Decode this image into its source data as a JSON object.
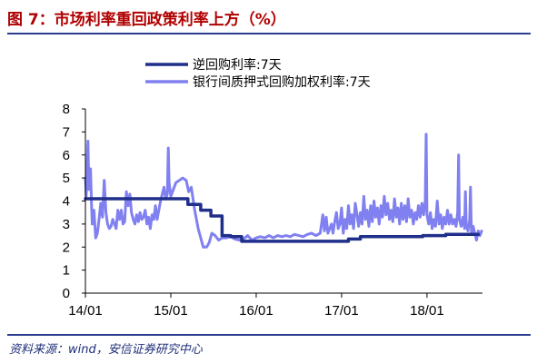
{
  "figure": {
    "title": "图 7：市场利率重回政策利率上方（%）",
    "source": "资料来源：wind，安信证券研究中心"
  },
  "chart_data": {
    "type": "line",
    "title": "",
    "xlabel": "",
    "ylabel": "",
    "x_ticks": [
      "14/01",
      "15/01",
      "16/01",
      "17/01",
      "18/01"
    ],
    "y_ticks": [
      "0",
      "1",
      "2",
      "3",
      "4",
      "5",
      "6",
      "7",
      "8"
    ],
    "ylim": [
      0,
      8
    ],
    "xlim": [
      2014.0,
      2018.65
    ],
    "legend_position": "top",
    "grid": false,
    "series": [
      {
        "name": "逆回购利率:7天",
        "color": "#1f2f8a",
        "step": true,
        "points": [
          [
            2014.0,
            4.1
          ],
          [
            2015.2,
            4.1
          ],
          [
            2015.2,
            3.85
          ],
          [
            2015.35,
            3.85
          ],
          [
            2015.35,
            3.6
          ],
          [
            2015.47,
            3.6
          ],
          [
            2015.47,
            3.35
          ],
          [
            2015.6,
            3.35
          ],
          [
            2015.6,
            2.5
          ],
          [
            2015.7,
            2.5
          ],
          [
            2015.7,
            2.45
          ],
          [
            2015.83,
            2.45
          ],
          [
            2015.83,
            2.25
          ],
          [
            2017.08,
            2.25
          ],
          [
            2017.08,
            2.35
          ],
          [
            2017.22,
            2.35
          ],
          [
            2017.22,
            2.45
          ],
          [
            2017.95,
            2.45
          ],
          [
            2017.95,
            2.5
          ],
          [
            2018.22,
            2.5
          ],
          [
            2018.22,
            2.55
          ],
          [
            2018.6,
            2.55
          ]
        ]
      },
      {
        "name": "银行间质押式回购加权利率:7天",
        "color": "#8080f0",
        "step": false,
        "points": [
          [
            2014.0,
            5.0
          ],
          [
            2014.01,
            4.2
          ],
          [
            2014.02,
            5.5
          ],
          [
            2014.03,
            6.6
          ],
          [
            2014.04,
            4.5
          ],
          [
            2014.05,
            5.0
          ],
          [
            2014.06,
            5.4
          ],
          [
            2014.07,
            4.0
          ],
          [
            2014.08,
            3.0
          ],
          [
            2014.1,
            3.6
          ],
          [
            2014.12,
            2.4
          ],
          [
            2014.14,
            2.6
          ],
          [
            2014.16,
            3.2
          ],
          [
            2014.18,
            3.9
          ],
          [
            2014.2,
            3.3
          ],
          [
            2014.22,
            4.9
          ],
          [
            2014.24,
            3.5
          ],
          [
            2014.26,
            3.0
          ],
          [
            2014.28,
            2.8
          ],
          [
            2014.3,
            2.9
          ],
          [
            2014.32,
            3.2
          ],
          [
            2014.34,
            3.0
          ],
          [
            2014.36,
            2.8
          ],
          [
            2014.38,
            3.6
          ],
          [
            2014.4,
            3.2
          ],
          [
            2014.42,
            3.6
          ],
          [
            2014.44,
            3.0
          ],
          [
            2014.46,
            3.1
          ],
          [
            2014.48,
            4.4
          ],
          [
            2014.5,
            3.8
          ],
          [
            2014.52,
            4.3
          ],
          [
            2014.54,
            3.5
          ],
          [
            2014.56,
            3.2
          ],
          [
            2014.58,
            3.0
          ],
          [
            2014.6,
            3.4
          ],
          [
            2014.62,
            3.1
          ],
          [
            2014.64,
            3.5
          ],
          [
            2014.66,
            3.2
          ],
          [
            2014.68,
            3.3
          ],
          [
            2014.7,
            3.6
          ],
          [
            2014.72,
            3.0
          ],
          [
            2014.74,
            3.3
          ],
          [
            2014.76,
            2.8
          ],
          [
            2014.78,
            3.4
          ],
          [
            2014.8,
            3.2
          ],
          [
            2014.82,
            3.8
          ],
          [
            2014.84,
            3.2
          ],
          [
            2014.86,
            3.6
          ],
          [
            2014.88,
            4.0
          ],
          [
            2014.9,
            4.3
          ],
          [
            2014.92,
            4.6
          ],
          [
            2014.94,
            4.1
          ],
          [
            2014.96,
            4.3
          ],
          [
            2014.97,
            6.3
          ],
          [
            2014.98,
            4.8
          ],
          [
            2015.0,
            4.2
          ],
          [
            2015.03,
            4.5
          ],
          [
            2015.06,
            4.8
          ],
          [
            2015.1,
            4.9
          ],
          [
            2015.14,
            5.0
          ],
          [
            2015.18,
            4.9
          ],
          [
            2015.21,
            4.4
          ],
          [
            2015.24,
            4.6
          ],
          [
            2015.28,
            3.6
          ],
          [
            2015.32,
            2.8
          ],
          [
            2015.35,
            2.4
          ],
          [
            2015.38,
            2.0
          ],
          [
            2015.42,
            2.0
          ],
          [
            2015.45,
            2.2
          ],
          [
            2015.48,
            2.6
          ],
          [
            2015.52,
            2.5
          ],
          [
            2015.56,
            2.3
          ],
          [
            2015.6,
            2.4
          ],
          [
            2015.65,
            2.4
          ],
          [
            2015.7,
            2.45
          ],
          [
            2015.75,
            2.35
          ],
          [
            2015.8,
            2.3
          ],
          [
            2015.85,
            2.35
          ],
          [
            2015.9,
            2.5
          ],
          [
            2015.95,
            2.3
          ],
          [
            2016.0,
            2.4
          ],
          [
            2016.05,
            2.45
          ],
          [
            2016.1,
            2.4
          ],
          [
            2016.15,
            2.5
          ],
          [
            2016.2,
            2.4
          ],
          [
            2016.25,
            2.5
          ],
          [
            2016.3,
            2.45
          ],
          [
            2016.35,
            2.5
          ],
          [
            2016.4,
            2.45
          ],
          [
            2016.45,
            2.55
          ],
          [
            2016.5,
            2.5
          ],
          [
            2016.55,
            2.45
          ],
          [
            2016.6,
            2.55
          ],
          [
            2016.65,
            2.6
          ],
          [
            2016.7,
            2.5
          ],
          [
            2016.75,
            2.6
          ],
          [
            2016.78,
            3.4
          ],
          [
            2016.8,
            2.7
          ],
          [
            2016.82,
            3.3
          ],
          [
            2016.84,
            2.6
          ],
          [
            2016.86,
            2.8
          ],
          [
            2016.88,
            3.0
          ],
          [
            2016.9,
            2.6
          ],
          [
            2016.92,
            3.1
          ],
          [
            2016.94,
            3.5
          ],
          [
            2016.96,
            2.8
          ],
          [
            2016.98,
            3.0
          ],
          [
            2017.0,
            3.7
          ],
          [
            2017.02,
            2.6
          ],
          [
            2017.04,
            3.2
          ],
          [
            2017.06,
            2.8
          ],
          [
            2017.08,
            3.8
          ],
          [
            2017.1,
            3.0
          ],
          [
            2017.12,
            3.4
          ],
          [
            2017.14,
            2.8
          ],
          [
            2017.16,
            3.9
          ],
          [
            2017.18,
            3.4
          ],
          [
            2017.2,
            2.9
          ],
          [
            2017.22,
            3.5
          ],
          [
            2017.24,
            3.0
          ],
          [
            2017.26,
            4.2
          ],
          [
            2017.28,
            3.2
          ],
          [
            2017.3,
            3.6
          ],
          [
            2017.32,
            2.9
          ],
          [
            2017.34,
            3.8
          ],
          [
            2017.36,
            3.1
          ],
          [
            2017.38,
            4.0
          ],
          [
            2017.4,
            3.3
          ],
          [
            2017.42,
            3.7
          ],
          [
            2017.44,
            3.0
          ],
          [
            2017.46,
            3.8
          ],
          [
            2017.48,
            3.3
          ],
          [
            2017.5,
            4.2
          ],
          [
            2017.52,
            3.4
          ],
          [
            2017.54,
            3.9
          ],
          [
            2017.56,
            3.2
          ],
          [
            2017.58,
            3.6
          ],
          [
            2017.6,
            3.1
          ],
          [
            2017.62,
            4.1
          ],
          [
            2017.64,
            3.3
          ],
          [
            2017.66,
            3.7
          ],
          [
            2017.68,
            3.0
          ],
          [
            2017.7,
            3.9
          ],
          [
            2017.72,
            3.2
          ],
          [
            2017.74,
            3.8
          ],
          [
            2017.76,
            3.1
          ],
          [
            2017.78,
            4.1
          ],
          [
            2017.8,
            3.3
          ],
          [
            2017.82,
            3.6
          ],
          [
            2017.84,
            3.0
          ],
          [
            2017.86,
            3.5
          ],
          [
            2017.88,
            3.2
          ],
          [
            2017.9,
            3.8
          ],
          [
            2017.92,
            3.3
          ],
          [
            2017.94,
            3.9
          ],
          [
            2017.96,
            3.4
          ],
          [
            2017.98,
            4.0
          ],
          [
            2017.99,
            6.9
          ],
          [
            2018.0,
            3.4
          ],
          [
            2018.02,
            3.0
          ],
          [
            2018.04,
            3.5
          ],
          [
            2018.06,
            2.8
          ],
          [
            2018.08,
            3.2
          ],
          [
            2018.1,
            2.9
          ],
          [
            2018.12,
            4.0
          ],
          [
            2018.14,
            3.0
          ],
          [
            2018.16,
            3.4
          ],
          [
            2018.18,
            2.8
          ],
          [
            2018.2,
            3.3
          ],
          [
            2018.22,
            3.0
          ],
          [
            2018.24,
            3.6
          ],
          [
            2018.26,
            3.0
          ],
          [
            2018.28,
            3.4
          ],
          [
            2018.3,
            3.0
          ],
          [
            2018.32,
            3.2
          ],
          [
            2018.34,
            2.9
          ],
          [
            2018.36,
            3.5
          ],
          [
            2018.37,
            6.0
          ],
          [
            2018.38,
            3.2
          ],
          [
            2018.4,
            2.9
          ],
          [
            2018.42,
            3.3
          ],
          [
            2018.44,
            2.8
          ],
          [
            2018.45,
            4.4
          ],
          [
            2018.46,
            3.0
          ],
          [
            2018.48,
            2.7
          ],
          [
            2018.5,
            3.2
          ],
          [
            2018.51,
            4.6
          ],
          [
            2018.52,
            2.6
          ],
          [
            2018.54,
            2.9
          ],
          [
            2018.56,
            2.6
          ],
          [
            2018.58,
            2.3
          ],
          [
            2018.6,
            2.7
          ],
          [
            2018.62,
            2.5
          ],
          [
            2018.64,
            2.7
          ]
        ]
      }
    ]
  }
}
